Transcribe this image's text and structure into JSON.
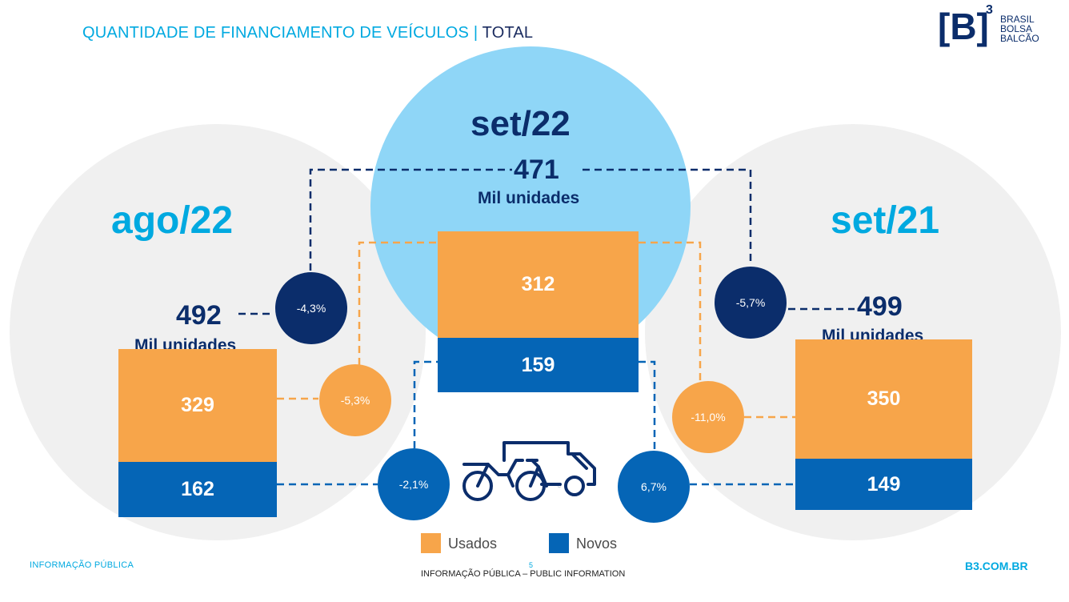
{
  "header": {
    "title_main": "QUANTIDADE DE FINANCIAMENTO DE VEÍCULOS",
    "title_sep": "|",
    "title_suffix": "TOTAL"
  },
  "logo": {
    "mark": "[B]",
    "superscript": "3",
    "line1": "BRASIL",
    "line2": "BOLSA",
    "line3": "BALCÃO"
  },
  "chart_data": {
    "type": "bar",
    "stacked": true,
    "categories": [
      "ago/22",
      "set/22",
      "set/21"
    ],
    "series": [
      {
        "name": "Usados",
        "values": [
          329,
          312,
          350
        ],
        "color": "#f7a54a"
      },
      {
        "name": "Novos",
        "values": [
          162,
          159,
          149
        ],
        "color": "#0565b6"
      }
    ],
    "totals": [
      {
        "value": "492",
        "unit": "Mil unidades"
      },
      {
        "value": "471",
        "unit": "Mil unidades"
      },
      {
        "value": "499",
        "unit": "Mil unidades"
      }
    ],
    "comparisons": {
      "total_vs_ago22": "-4,3%",
      "total_vs_set21": "-5,7%",
      "usados_vs_ago22": "-5,3%",
      "usados_vs_set21": "-11,0%",
      "novos_vs_ago22": "-2,1%",
      "novos_vs_set21": "6,7%"
    },
    "legend_position": "bottom-center"
  },
  "colors": {
    "usados": "#f7a54a",
    "novos": "#0565b6",
    "dark_navy": "#0b2d6b",
    "accent": "#00a9e0",
    "center_circle": "#8fd6f7",
    "side_circle": "#f0f0f0"
  },
  "icons": {
    "vehicles": "vehicles-icon"
  },
  "footer": {
    "left": "INFORMAÇÃO PÚBLICA",
    "page_number": "5",
    "center": "INFORMAÇÃO PÚBLICA – PUBLIC INFORMATION",
    "right": "B3.COM.BR"
  }
}
